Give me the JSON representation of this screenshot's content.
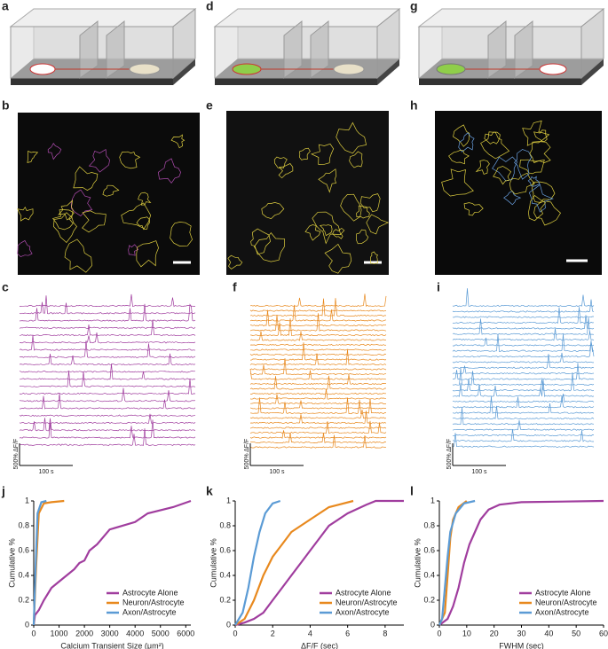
{
  "panel_labels": [
    "a",
    "d",
    "g",
    "b",
    "e",
    "h",
    "c",
    "f",
    "i",
    "j",
    "k",
    "l"
  ],
  "traces": [
    {
      "scale_y": "500% ΔF/F",
      "scale_x": "100 s"
    },
    {
      "scale_y": "500% ΔF/F",
      "scale_x": "100 s"
    },
    {
      "scale_y": "500% ΔF/F",
      "scale_x": "100 s"
    }
  ],
  "chart_data": [
    {
      "type": "line",
      "xlabel": "Calcium Transient Size (μm²)",
      "ylabel": "Cumulative %",
      "xlim": [
        0,
        6200
      ],
      "xticks": [
        0,
        1000,
        2000,
        3000,
        4000,
        5000,
        6000
      ],
      "ylim": [
        0,
        1
      ],
      "yticks": [
        0,
        0.2,
        0.4,
        0.6,
        0.8,
        1
      ],
      "legend": "lower right",
      "series": [
        {
          "name": "Astrocyte Alone",
          "color": "#a03d9e",
          "x": [
            0,
            50,
            200,
            400,
            700,
            1000,
            1300,
            1600,
            1800,
            2000,
            2200,
            2500,
            3000,
            4000,
            4500,
            5500,
            6200
          ],
          "values": [
            0,
            0.08,
            0.12,
            0.2,
            0.3,
            0.35,
            0.4,
            0.45,
            0.5,
            0.52,
            0.6,
            0.65,
            0.77,
            0.83,
            0.9,
            0.95,
            1
          ]
        },
        {
          "name": "Neuron/Astrocyte",
          "color": "#e8891e",
          "x": [
            0,
            100,
            200,
            400,
            700,
            1200
          ],
          "values": [
            0,
            0.5,
            0.9,
            0.98,
            0.99,
            1
          ]
        },
        {
          "name": "Axon/Astrocyte",
          "color": "#5b9bd5",
          "x": [
            0,
            80,
            150,
            300,
            500
          ],
          "values": [
            0,
            0.5,
            0.9,
            0.99,
            1
          ]
        }
      ]
    },
    {
      "type": "line",
      "xlabel": "ΔF/F (sec)",
      "ylabel": "Cumulative %",
      "xlim": [
        0,
        9
      ],
      "xticks": [
        0,
        2,
        4,
        6,
        8
      ],
      "ylim": [
        0,
        1
      ],
      "yticks": [
        0,
        0.2,
        0.4,
        0.6,
        0.8,
        1
      ],
      "legend": "lower right",
      "series": [
        {
          "name": "Astrocyte Alone",
          "color": "#a03d9e",
          "x": [
            0,
            0.5,
            1,
            1.5,
            2,
            2.5,
            3,
            3.5,
            4,
            4.5,
            5,
            6,
            7,
            7.5,
            9
          ],
          "values": [
            0,
            0.02,
            0.05,
            0.1,
            0.2,
            0.3,
            0.4,
            0.5,
            0.6,
            0.7,
            0.8,
            0.9,
            0.97,
            1,
            1
          ]
        },
        {
          "name": "Neuron/Astrocyte",
          "color": "#e8891e",
          "x": [
            0,
            0.5,
            1,
            1.5,
            2,
            2.5,
            3,
            4,
            5,
            6.3
          ],
          "values": [
            0,
            0.05,
            0.2,
            0.4,
            0.55,
            0.65,
            0.75,
            0.85,
            0.95,
            1
          ]
        },
        {
          "name": "Axon/Astrocyte",
          "color": "#5b9bd5",
          "x": [
            0,
            0.4,
            0.7,
            1,
            1.3,
            1.6,
            2,
            2.4
          ],
          "values": [
            0,
            0.1,
            0.3,
            0.55,
            0.75,
            0.9,
            0.98,
            1
          ]
        }
      ]
    },
    {
      "type": "line",
      "xlabel": "FWHM (sec)",
      "ylabel": "Cumulative %",
      "xlim": [
        0,
        60
      ],
      "xticks": [
        0,
        10,
        20,
        30,
        40,
        50,
        60
      ],
      "ylim": [
        0,
        1
      ],
      "yticks": [
        0,
        0.2,
        0.4,
        0.6,
        0.8,
        1
      ],
      "legend": "lower right",
      "series": [
        {
          "name": "Astrocyte Alone",
          "color": "#a03d9e",
          "x": [
            0,
            3,
            5,
            7,
            9,
            11,
            13,
            15,
            18,
            22,
            30,
            60
          ],
          "values": [
            0,
            0.05,
            0.15,
            0.3,
            0.5,
            0.65,
            0.75,
            0.85,
            0.93,
            0.97,
            0.99,
            1
          ]
        },
        {
          "name": "Neuron/Astrocyte",
          "color": "#e8891e",
          "x": [
            0,
            2,
            3,
            4,
            5,
            7,
            10
          ],
          "values": [
            0,
            0.1,
            0.4,
            0.7,
            0.85,
            0.95,
            1
          ]
        },
        {
          "name": "Axon/Astrocyte",
          "color": "#5b9bd5",
          "x": [
            0,
            1,
            2,
            3,
            4,
            6,
            9,
            13
          ],
          "values": [
            0,
            0.05,
            0.3,
            0.55,
            0.75,
            0.9,
            0.98,
            1
          ]
        }
      ]
    }
  ]
}
